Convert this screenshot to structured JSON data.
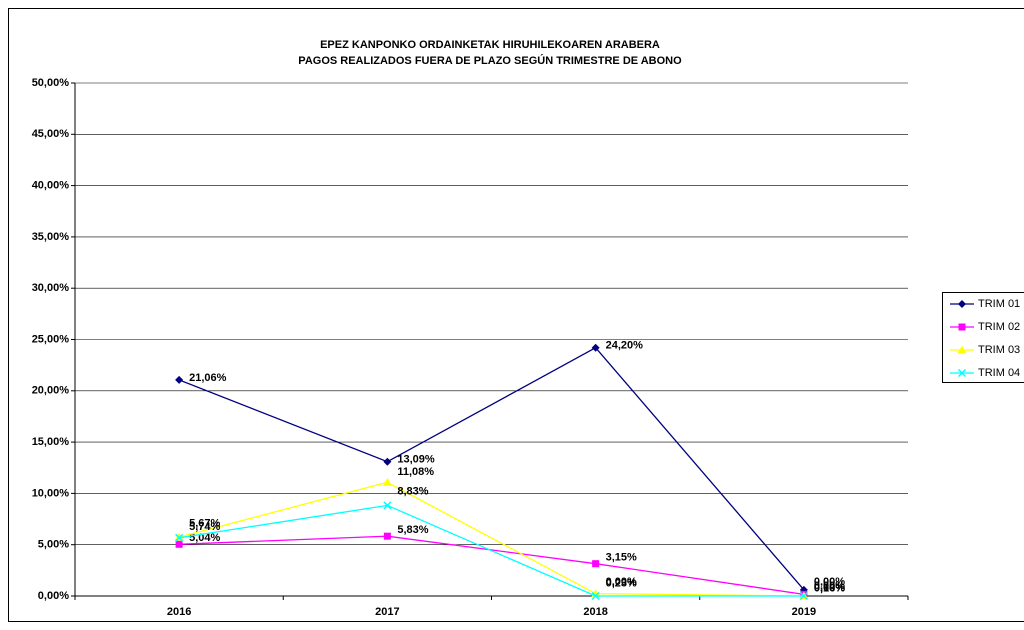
{
  "chart_data": {
    "type": "line",
    "title": "EPEZ KANPONKO ORDAINKETAK HIRUHILEKOAREN ARABERA",
    "subtitle": "PAGOS REALIZADOS FUERA DE PLAZO SEGÚN TRIMESTRE DE ABONO",
    "categories": [
      "2016",
      "2017",
      "2018",
      "2019"
    ],
    "series": [
      {
        "name": "TRIM 01",
        "color": "#000080",
        "marker": "diamond",
        "values": [
          21.06,
          13.09,
          24.2,
          0.6
        ],
        "value_labels": [
          "21,06%",
          "13,09%",
          "24,20%",
          "0,60%"
        ]
      },
      {
        "name": "TRIM 02",
        "color": "#ff00ff",
        "marker": "square",
        "values": [
          5.04,
          5.83,
          3.15,
          0.16
        ],
        "value_labels": [
          "5,04%",
          "5,83%",
          "3,15%",
          "0,16%"
        ]
      },
      {
        "name": "TRIM 03",
        "color": "#ffff00",
        "marker": "triangle",
        "values": [
          5.74,
          11.08,
          0.23,
          0.0
        ],
        "value_labels": [
          "5,74%",
          "11,08%",
          "0,23%",
          "0,00%"
        ]
      },
      {
        "name": "TRIM 04",
        "color": "#00ffff",
        "marker": "x",
        "values": [
          5.67,
          8.83,
          0.0,
          0.0
        ],
        "value_labels": [
          "5,67%",
          "8,83%",
          "0,00%",
          "0,00%"
        ]
      }
    ],
    "ylim": [
      0,
      50
    ],
    "yticks": [
      {
        "value": 0,
        "label": "0,00%"
      },
      {
        "value": 5,
        "label": "5,00%"
      },
      {
        "value": 10,
        "label": "10,00%"
      },
      {
        "value": 15,
        "label": "15,00%"
      },
      {
        "value": 20,
        "label": "20,00%"
      },
      {
        "value": 25,
        "label": "25,00%"
      },
      {
        "value": 30,
        "label": "30,00%"
      },
      {
        "value": 35,
        "label": "35,00%"
      },
      {
        "value": 40,
        "label": "40,00%"
      },
      {
        "value": 45,
        "label": "45,00%"
      },
      {
        "value": 50,
        "label": "50,00%"
      }
    ],
    "grid": true,
    "legend": "right"
  }
}
